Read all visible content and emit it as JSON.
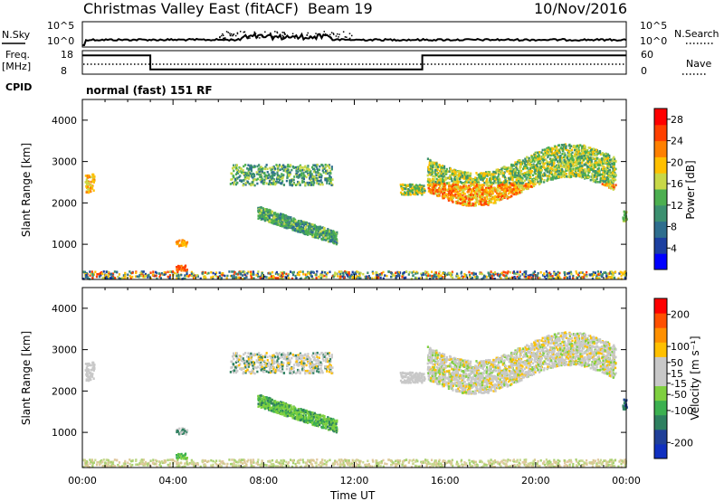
{
  "header": {
    "title": "Christmas Valley East (fitACF)",
    "beam": "Beam 19",
    "date": "10/Nov/2016"
  },
  "labels": {
    "nsky": "N.Sky",
    "nsearch": "N.Search",
    "freq_line1": "Freq.",
    "freq_line2": "[MHz]",
    "nave": "Nave",
    "cpid": "CPID",
    "cpid_value": "normal (fast) 151 RF",
    "nsky_ticks": [
      "10^5",
      "10^0"
    ],
    "nsearch_ticks": [
      "10^5",
      "10^0"
    ],
    "freq_ticks": [
      "18",
      "8"
    ],
    "nave_ticks": [
      "60",
      "0"
    ]
  },
  "colors": {
    "power": [
      "#0000ff",
      "#1c3fa0",
      "#2e6e8e",
      "#3c9070",
      "#4caf50",
      "#c8d848",
      "#ffc000",
      "#ff8000",
      "#ff4000",
      "#ff0000"
    ],
    "velocity": [
      "#ff0000",
      "#ff5000",
      "#ff9000",
      "#ffc000",
      "#c8c8c8",
      "#c8c8c8",
      "#7fd040",
      "#3cb050",
      "#2e8060",
      "#204098",
      "#1030c0"
    ],
    "ground": "#7f7f7f"
  },
  "chart_data": [
    {
      "type": "heatmap",
      "name": "power",
      "ylabel": "Slant Range [km]",
      "xlim": [
        0,
        24
      ],
      "ylim": [
        150,
        4500
      ],
      "yticks": [
        "1000",
        "2000",
        "3000",
        "4000"
      ],
      "colorbar": {
        "label": "Power [dB]",
        "ticks": [
          "4",
          "8",
          "12",
          "16",
          "20",
          "24",
          "28"
        ],
        "range": [
          0,
          30
        ]
      }
    },
    {
      "type": "heatmap",
      "name": "velocity",
      "ylabel": "Slant Range [km]",
      "xlabel": "Time UT",
      "xlim": [
        0,
        24
      ],
      "ylim": [
        150,
        4500
      ],
      "xticks": [
        "00:00",
        "04:00",
        "08:00",
        "12:00",
        "16:00",
        "20:00",
        "00:00"
      ],
      "yticks": [
        "1000",
        "2000",
        "3000",
        "4000"
      ],
      "colorbar": {
        "label": "Velocity [m s⁻¹]",
        "ticks": [
          "200",
          "100",
          "50",
          "15",
          "-15",
          "-50",
          "-100",
          "-200"
        ],
        "range": [
          -250,
          250
        ]
      }
    },
    {
      "type": "line",
      "name": "frequency",
      "unit": "MHz",
      "ylim": [
        8,
        18
      ],
      "x": [
        0,
        3,
        3,
        15,
        15,
        24
      ],
      "y": [
        16,
        16,
        10,
        10,
        16,
        16
      ]
    }
  ]
}
